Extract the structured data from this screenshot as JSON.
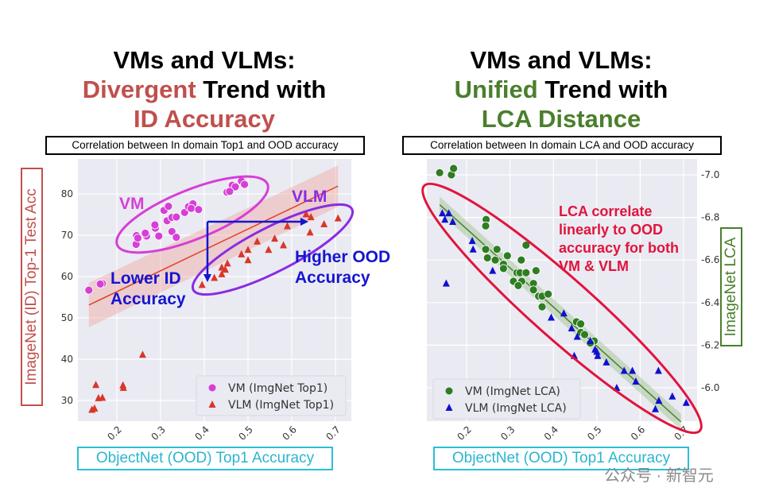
{
  "chart_data": [
    {
      "type": "scatter",
      "title_lines": [
        [
          {
            "text": "VMs and VLMs:",
            "color": "#000000"
          }
        ],
        [
          {
            "text": "Divergent",
            "color": "#c0504d"
          },
          {
            "text": " Trend with",
            "color": "#000000"
          }
        ],
        [
          {
            "text": "ID Accuracy",
            "color": "#c0504d"
          }
        ]
      ],
      "subtitle": "Correlation between In domain Top1 and OOD accuracy",
      "xlabel": "ObjectNet (OOD) Top1 Accuracy",
      "ylabel": "ImageNet (ID) Top-1 Test Acc",
      "xlim": [
        0.112,
        0.733
      ],
      "ylim": [
        25.4,
        88.5
      ],
      "xticks": [
        0.2,
        0.3,
        0.4,
        0.5,
        0.6,
        0.7
      ],
      "yticks": [
        30,
        40,
        50,
        60,
        70,
        80
      ],
      "grid": true,
      "legend_position": "bottom-right",
      "series": [
        {
          "name": "VM (ImgNet Top1)",
          "marker": "circle",
          "color": "#d63fd6",
          "points": [
            [
              0.136,
              56.7
            ],
            [
              0.167,
              58.3
            ],
            [
              0.162,
              58.2
            ],
            [
              0.244,
              67.8
            ],
            [
              0.245,
              69.9
            ],
            [
              0.248,
              69.3
            ],
            [
              0.268,
              69.8
            ],
            [
              0.265,
              70.5
            ],
            [
              0.288,
              71.7
            ],
            [
              0.287,
              72.5
            ],
            [
              0.296,
              69.8
            ],
            [
              0.308,
              76
            ],
            [
              0.318,
              77
            ],
            [
              0.315,
              73.5
            ],
            [
              0.326,
              74.3
            ],
            [
              0.336,
              74.4
            ],
            [
              0.326,
              70.9
            ],
            [
              0.336,
              69.5
            ],
            [
              0.355,
              75.5
            ],
            [
              0.364,
              76.9
            ],
            [
              0.374,
              77.6
            ],
            [
              0.37,
              76.5
            ],
            [
              0.387,
              76.2
            ],
            [
              0.452,
              80.4
            ],
            [
              0.464,
              82.1
            ],
            [
              0.471,
              81.7
            ],
            [
              0.485,
              83.1
            ],
            [
              0.492,
              82.3
            ],
            [
              0.458,
              80.6
            ]
          ]
        },
        {
          "name": "VLM (ImgNet Top1)",
          "marker": "triangle",
          "color": "#d9362a",
          "points": [
            [
              0.395,
              58
            ],
            [
              0.423,
              59.7
            ],
            [
              0.44,
              60.6
            ],
            [
              0.44,
              62.2
            ],
            [
              0.448,
              61.7
            ],
            [
              0.453,
              63.2
            ],
            [
              0.485,
              65.4
            ],
            [
              0.5,
              66.5
            ],
            [
              0.5,
              64
            ],
            [
              0.521,
              68.5
            ],
            [
              0.547,
              66.5
            ],
            [
              0.561,
              69.2
            ],
            [
              0.581,
              67.6
            ],
            [
              0.59,
              72.2
            ],
            [
              0.633,
              75.1
            ],
            [
              0.644,
              74.4
            ],
            [
              0.642,
              70.7
            ],
            [
              0.674,
              72.7
            ],
            [
              0.706,
              74.1
            ],
            [
              0.259,
              41.1
            ],
            [
              0.152,
              33.8
            ],
            [
              0.214,
              33.7
            ],
            [
              0.215,
              33.1
            ],
            [
              0.158,
              30.6
            ],
            [
              0.167,
              30.7
            ],
            [
              0.143,
              27.8
            ],
            [
              0.149,
              28.1
            ]
          ]
        }
      ],
      "fit_line": [
        [
          0.136,
          53.1
        ],
        [
          0.706,
          81.9
        ]
      ],
      "annotations": {
        "vm": "VM",
        "vlm": "VLM",
        "lower": [
          "Lower ID",
          "Accuracy"
        ],
        "higher": [
          "Higher OOD",
          "Accuracy"
        ]
      }
    },
    {
      "type": "scatter",
      "title_lines": [
        [
          {
            "text": "VMs and VLMs:",
            "color": "#000000"
          }
        ],
        [
          {
            "text": "Unified",
            "color": "#4a7f2c"
          },
          {
            "text": " Trend with",
            "color": "#000000"
          }
        ],
        [
          {
            "text": "LCA Distance",
            "color": "#4a7f2c"
          }
        ]
      ],
      "subtitle": "Correlation between In domain LCA and OOD accuracy",
      "xlabel": "ObjectNet (OOD) Top1 Accuracy",
      "ylabel": "ImageNet LCA",
      "xlim": [
        0.109,
        0.73
      ],
      "ylim": [
        5.84,
        7.07
      ],
      "xticks": [
        0.2,
        0.3,
        0.4,
        0.5,
        0.6,
        0.7
      ],
      "yticks": [
        6.0,
        6.2,
        6.4,
        6.6,
        6.8,
        7.0
      ],
      "grid": true,
      "legend_position": "bottom-left",
      "series": [
        {
          "name": "VM (ImgNet LCA)",
          "marker": "circle",
          "color": "#2e7d22",
          "points": [
            [
              0.138,
              7.01
            ],
            [
              0.165,
              7.0
            ],
            [
              0.17,
              7.03
            ],
            [
              0.245,
              6.79
            ],
            [
              0.244,
              6.76
            ],
            [
              0.244,
              6.65
            ],
            [
              0.248,
              6.61
            ],
            [
              0.27,
              6.65
            ],
            [
              0.266,
              6.6
            ],
            [
              0.285,
              6.58
            ],
            [
              0.294,
              6.62
            ],
            [
              0.285,
              6.56
            ],
            [
              0.337,
              6.67
            ],
            [
              0.326,
              6.6
            ],
            [
              0.316,
              6.54
            ],
            [
              0.323,
              6.54
            ],
            [
              0.337,
              6.54
            ],
            [
              0.308,
              6.5
            ],
            [
              0.327,
              6.5
            ],
            [
              0.319,
              6.48
            ],
            [
              0.354,
              6.49
            ],
            [
              0.354,
              6.46
            ],
            [
              0.36,
              6.55
            ],
            [
              0.366,
              6.43
            ],
            [
              0.374,
              6.43
            ],
            [
              0.388,
              6.44
            ],
            [
              0.374,
              6.38
            ],
            [
              0.453,
              6.31
            ],
            [
              0.463,
              6.3
            ],
            [
              0.463,
              6.26
            ],
            [
              0.472,
              6.25
            ],
            [
              0.494,
              6.22
            ],
            [
              0.485,
              6.21
            ]
          ]
        },
        {
          "name": "VLM (ImgNet LCA)",
          "marker": "triangle",
          "color": "#1010d0",
          "points": [
            [
              0.144,
              6.82
            ],
            [
              0.159,
              6.82
            ],
            [
              0.15,
              6.79
            ],
            [
              0.168,
              6.78
            ],
            [
              0.213,
              6.69
            ],
            [
              0.215,
              6.65
            ],
            [
              0.153,
              6.49
            ],
            [
              0.26,
              6.55
            ],
            [
              0.395,
              6.33
            ],
            [
              0.424,
              6.35
            ],
            [
              0.442,
              6.28
            ],
            [
              0.455,
              6.24
            ],
            [
              0.448,
              6.15
            ],
            [
              0.485,
              6.22
            ],
            [
              0.496,
              6.18
            ],
            [
              0.5,
              6.17
            ],
            [
              0.502,
              6.15
            ],
            [
              0.522,
              6.12
            ],
            [
              0.546,
              6.0
            ],
            [
              0.563,
              6.08
            ],
            [
              0.582,
              6.08
            ],
            [
              0.59,
              6.03
            ],
            [
              0.642,
              6.08
            ],
            [
              0.643,
              5.94
            ],
            [
              0.635,
              5.9
            ],
            [
              0.674,
              5.96
            ],
            [
              0.706,
              5.93
            ]
          ]
        }
      ],
      "fit_line": [
        [
          0.138,
          6.86
        ],
        [
          0.694,
          5.84
        ]
      ],
      "annotations": {
        "note": [
          "LCA correlate",
          "linearly to OOD",
          "accuracy for both",
          "VM & VLM"
        ]
      }
    }
  ],
  "watermark": "公众号 · 新智元"
}
